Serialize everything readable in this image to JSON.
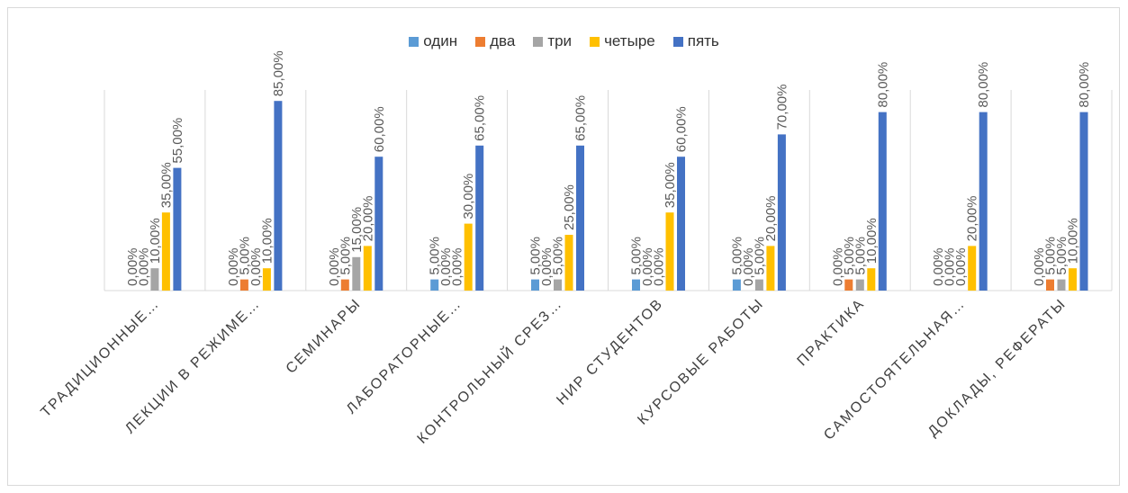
{
  "chart_data": {
    "type": "bar",
    "title": "",
    "xlabel": "",
    "ylabel": "",
    "ylim": [
      0,
      100
    ],
    "grid": false,
    "legend_position": "top",
    "categories": [
      "ТРАДИЦИОННЫЕ…",
      "ЛЕКЦИИ В РЕЖИМЕ…",
      "СЕМИНАРЫ",
      "ЛАБОРАТОРНЫЕ…",
      "КОНТРОЛЬНЫЙ СРЕЗ…",
      "НИР СТУДЕНТОВ",
      "КУРСОВЫЕ РАБОТЫ",
      "ПРАКТИКА",
      "САМОСТОЯТЕЛЬНАЯ…",
      "ДОКЛАДЫ, РЕФЕРАТЫ"
    ],
    "series": [
      {
        "name": "один",
        "color": "#5b9bd5",
        "values": [
          0,
          0,
          0,
          5,
          5,
          5,
          5,
          0,
          0,
          0
        ],
        "labels": [
          "0,00%",
          "0,00%",
          "0,00%",
          "5,00%",
          "5,00%",
          "5,00%",
          "5,00%",
          "0,00%",
          "0,00%",
          "0,00%"
        ]
      },
      {
        "name": "два",
        "color": "#ed7d31",
        "values": [
          0,
          5,
          5,
          0,
          0,
          0,
          0,
          5,
          0,
          5
        ],
        "labels": [
          "0,00%",
          "5,00%",
          "5,00%",
          "0,00%",
          "0,00%",
          "0,00%",
          "0,00%",
          "5,00%",
          "0,00%",
          "5,00%"
        ]
      },
      {
        "name": "три",
        "color": "#a5a5a5",
        "values": [
          10,
          0,
          15,
          0,
          5,
          0,
          5,
          5,
          0,
          5
        ],
        "labels": [
          "10,00%",
          "0,00%",
          "15,00%",
          "0,00%",
          "5,00%",
          "0,00%",
          "5,00%",
          "5,00%",
          "0,00%",
          "5,00%"
        ]
      },
      {
        "name": "четыре",
        "color": "#ffc000",
        "values": [
          35,
          10,
          20,
          30,
          25,
          35,
          20,
          10,
          20,
          10
        ],
        "labels": [
          "35,00%",
          "10,00%",
          "20,00%",
          "30,00%",
          "25,00%",
          "35,00%",
          "20,00%",
          "10,00%",
          "20,00%",
          "10,00%"
        ]
      },
      {
        "name": "пять",
        "color": "#4472c4",
        "values": [
          55,
          85,
          60,
          65,
          65,
          60,
          70,
          80,
          80,
          80
        ],
        "labels": [
          "55,00%",
          "85,00%",
          "60,00%",
          "65,00%",
          "65,00%",
          "60,00%",
          "70,00%",
          "80,00%",
          "80,00%",
          "80,00%"
        ]
      }
    ]
  }
}
